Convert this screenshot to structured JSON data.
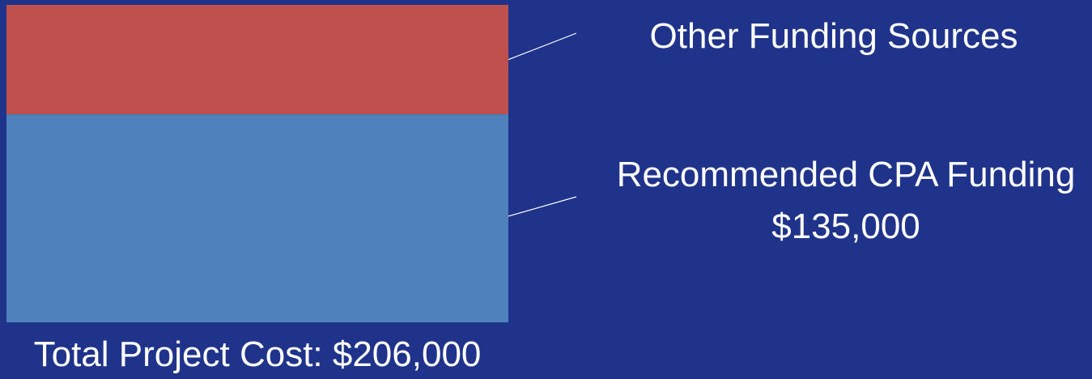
{
  "colors": {
    "background": "#1f338b",
    "bar_top": "#c0504d",
    "bar_bottom": "#4f81bd",
    "text": "#ffffff",
    "leader_line": "#ffffff"
  },
  "chart_data": {
    "type": "bar",
    "stacked": true,
    "orientation": "vertical",
    "total_label": "Total Project Cost: $206,000",
    "total_value": 206000,
    "series": [
      {
        "name": "Recommended CPA Funding",
        "value": 135000,
        "value_label": "$135,000",
        "color": "#4f81bd",
        "position": "bottom"
      },
      {
        "name": "Other Funding Sources",
        "value": 71000,
        "value_label": "",
        "color": "#c0504d",
        "position": "top"
      }
    ],
    "legend_placement": "right",
    "grid": false
  }
}
